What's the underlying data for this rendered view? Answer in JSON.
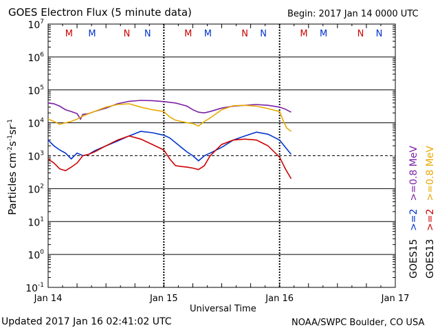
{
  "chart_data": {
    "type": "line",
    "title": "GOES Electron Flux (5 minute data)",
    "begin_label": "Begin: 2017 Jan 14 0000 UTC",
    "xlabel": "Universal Time",
    "ylabel_main": "Particles cm",
    "ylabel_exp1": "-2",
    "ylabel_mid": "s",
    "ylabel_exp2": "-1",
    "ylabel_sr": "sr",
    "ylabel_exp3": "-1",
    "yscale": "log",
    "ylim": [
      0.1,
      10000000
    ],
    "xlim_days": [
      0,
      3
    ],
    "x_ticks": [
      {
        "day": 0,
        "label": "Jan 14"
      },
      {
        "day": 1,
        "label": "Jan 15"
      },
      {
        "day": 2,
        "label": "Jan 16"
      },
      {
        "day": 3,
        "label": "Jan 17"
      }
    ],
    "y_ticks": [
      {
        "exp": 7,
        "base": "10",
        "sup": "7"
      },
      {
        "exp": 6,
        "base": "10",
        "sup": "6"
      },
      {
        "exp": 5,
        "base": "10",
        "sup": "5"
      },
      {
        "exp": 4,
        "base": "10",
        "sup": "4"
      },
      {
        "exp": 3,
        "base": "10",
        "sup": "3"
      },
      {
        "exp": 2,
        "base": "10",
        "sup": "2"
      },
      {
        "exp": 1,
        "base": "10",
        "sup": "1"
      },
      {
        "exp": 0,
        "base": "10",
        "sup": "0"
      },
      {
        "exp": -1,
        "base": "10",
        "sup": "-1"
      }
    ],
    "threshold": 1000,
    "mn_markers": [
      {
        "day": 0.18,
        "label": "M",
        "color": "#cc0000"
      },
      {
        "day": 0.38,
        "label": "M",
        "color": "#0033cc"
      },
      {
        "day": 0.68,
        "label": "N",
        "color": "#cc0000"
      },
      {
        "day": 0.86,
        "label": "N",
        "color": "#0033cc"
      },
      {
        "day": 1.21,
        "label": "M",
        "color": "#cc0000"
      },
      {
        "day": 1.38,
        "label": "M",
        "color": "#0033cc"
      },
      {
        "day": 1.7,
        "label": "N",
        "color": "#cc0000"
      },
      {
        "day": 1.86,
        "label": "N",
        "color": "#0033cc"
      },
      {
        "day": 2.21,
        "label": "M",
        "color": "#cc0000"
      },
      {
        "day": 2.38,
        "label": "M",
        "color": "#0033cc"
      },
      {
        "day": 2.7,
        "label": "N",
        "color": "#cc0000"
      },
      {
        "day": 2.86,
        "label": "N",
        "color": "#0033cc"
      }
    ],
    "legend": {
      "placement": "right",
      "col1": [
        {
          "label": "GOES15",
          "color": "#000000"
        },
        {
          "label": ">=2",
          "color": "#0033cc"
        },
        {
          "label": ">=0.8 MeV",
          "color": "#7a1fa2"
        }
      ],
      "col2": [
        {
          "label": "GOES13",
          "color": "#000000"
        },
        {
          "label": ">=2",
          "color": "#cc0000"
        },
        {
          "label": ">=0.8 MeV",
          "color": "#e8a800"
        }
      ]
    },
    "series": [
      {
        "name": "GOES15 >=0.8 MeV",
        "color": "#7a1fa2",
        "x": [
          0,
          0.05,
          0.1,
          0.15,
          0.2,
          0.25,
          0.28,
          0.3,
          0.35,
          0.4,
          0.5,
          0.6,
          0.7,
          0.8,
          0.9,
          1.0,
          1.05,
          1.1,
          1.15,
          1.2,
          1.25,
          1.3,
          1.35,
          1.4,
          1.5,
          1.6,
          1.7,
          1.8,
          1.9,
          2.0,
          2.05,
          2.1
        ],
        "y": [
          40000,
          38000,
          32000,
          25000,
          22000,
          19000,
          13000,
          18000,
          19000,
          22000,
          28000,
          38000,
          45000,
          48000,
          47000,
          44000,
          42000,
          40000,
          36000,
          32000,
          25000,
          21000,
          20000,
          22000,
          28000,
          32000,
          34000,
          36000,
          34000,
          30000,
          26000,
          21000
        ]
      },
      {
        "name": "GOES13 >=0.8 MeV",
        "color": "#e8a800",
        "x": [
          0,
          0.05,
          0.1,
          0.15,
          0.2,
          0.25,
          0.3,
          0.35,
          0.4,
          0.5,
          0.6,
          0.7,
          0.8,
          0.9,
          1.0,
          1.05,
          1.1,
          1.15,
          1.2,
          1.25,
          1.3,
          1.35,
          1.4,
          1.5,
          1.6,
          1.7,
          1.8,
          1.9,
          2.0,
          2.03,
          2.06,
          2.1
        ],
        "y": [
          13000,
          11000,
          9000,
          10000,
          11000,
          13000,
          16000,
          19000,
          22000,
          30000,
          36000,
          38000,
          30000,
          25000,
          22000,
          15000,
          12000,
          11000,
          10000,
          9500,
          8000,
          11000,
          14000,
          25000,
          33000,
          34000,
          32000,
          27000,
          22000,
          12000,
          7000,
          5500
        ]
      },
      {
        "name": "GOES15 >=2 MeV",
        "color": "#0033cc",
        "x": [
          0,
          0.05,
          0.1,
          0.15,
          0.2,
          0.25,
          0.3,
          0.35,
          0.4,
          0.5,
          0.6,
          0.7,
          0.8,
          0.9,
          1.0,
          1.05,
          1.1,
          1.15,
          1.2,
          1.25,
          1.3,
          1.35,
          1.4,
          1.5,
          1.6,
          1.7,
          1.8,
          1.9,
          2.0,
          2.05,
          2.1
        ],
        "y": [
          3000,
          2000,
          1500,
          1200,
          800,
          1200,
          1000,
          1100,
          1400,
          2000,
          2800,
          4000,
          5500,
          5000,
          4200,
          3500,
          2500,
          1800,
          1300,
          1000,
          700,
          1000,
          1200,
          1800,
          3000,
          4000,
          5200,
          4500,
          3000,
          1800,
          1100
        ]
      },
      {
        "name": "GOES13 >=2 MeV",
        "color": "#cc0000",
        "x": [
          0,
          0.05,
          0.1,
          0.15,
          0.2,
          0.25,
          0.3,
          0.35,
          0.4,
          0.5,
          0.6,
          0.7,
          0.8,
          0.9,
          1.0,
          1.05,
          1.1,
          1.15,
          1.2,
          1.25,
          1.3,
          1.35,
          1.4,
          1.5,
          1.6,
          1.7,
          1.8,
          1.9,
          2.0,
          2.05,
          2.1
        ],
        "y": [
          800,
          600,
          400,
          350,
          450,
          600,
          1000,
          1100,
          1300,
          2000,
          3000,
          4000,
          3200,
          2200,
          1500,
          800,
          500,
          470,
          450,
          420,
          380,
          500,
          1000,
          2200,
          3000,
          3200,
          3000,
          2000,
          900,
          400,
          200
        ]
      }
    ]
  },
  "footer": {
    "updated": "Updated 2017 Jan 16 02:41:02 UTC",
    "credit": "NOAA/SWPC Boulder, CO USA"
  }
}
